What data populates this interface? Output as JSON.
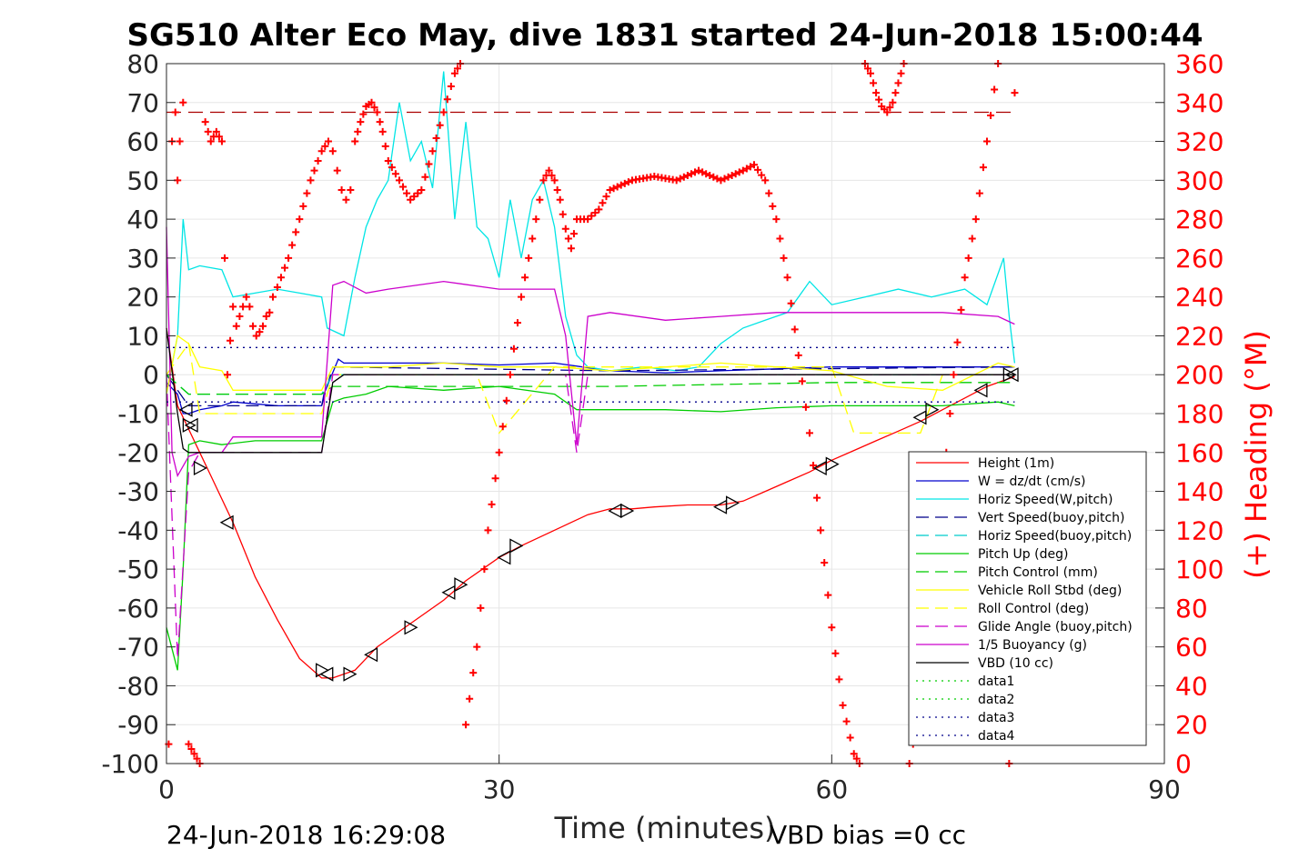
{
  "chart_data": {
    "type": "line",
    "title": "SG510 Alter Eco May, dive 1831 started 24-Jun-2018 15:00:44",
    "xlabel": "Time (minutes)",
    "ylabel_right": "(+) Heading (°M)",
    "xlim": [
      0,
      90
    ],
    "ylim_left": [
      -100,
      80
    ],
    "ylim_right": [
      0,
      360
    ],
    "x_ticks": [
      "0",
      "30",
      "60",
      "90"
    ],
    "y_ticks_left": [
      "80",
      "70",
      "60",
      "50",
      "40",
      "30",
      "20",
      "10",
      "0",
      "-10",
      "-20",
      "-30",
      "-40",
      "-50",
      "-60",
      "-70",
      "-80",
      "-90",
      "-100"
    ],
    "y_ticks_right": [
      "360",
      "340",
      "320",
      "300",
      "280",
      "260",
      "240",
      "220",
      "200",
      "180",
      "160",
      "140",
      "120",
      "100",
      "80",
      "60",
      "40",
      "20",
      "0"
    ],
    "grid": true,
    "legend_position": "lower-right",
    "footer_left": "24-Jun-2018 16:29:08",
    "footer_right": "VBD bias =0 cc",
    "reference_line_y": 67.5,
    "series": [
      {
        "name": "Height (1m)",
        "color": "#ff0000",
        "style": "solid",
        "x": [
          0,
          1,
          2,
          3,
          4,
          6,
          8,
          10,
          12,
          14,
          15,
          17,
          19,
          22,
          25,
          27,
          30,
          32,
          35,
          38,
          40,
          42,
          44,
          47,
          50,
          52,
          54,
          56,
          58,
          60,
          62,
          64,
          66,
          68,
          70,
          72,
          74,
          76.5
        ],
        "y": [
          12,
          -8,
          -14,
          -20,
          -26,
          -38,
          -52,
          -63,
          -73,
          -78,
          -78,
          -76,
          -70,
          -64,
          -58,
          -53,
          -47,
          -44,
          -40,
          -36,
          -34.5,
          -34.5,
          -34,
          -33.5,
          -33.5,
          -32.5,
          -30,
          -27.5,
          -25,
          -22,
          -19.5,
          -17,
          -14.5,
          -12,
          -9,
          -6,
          -3,
          -0.5
        ]
      },
      {
        "name": "W = dz/dt (cm/s)",
        "color": "#0000cd",
        "style": "solid",
        "x": [
          0,
          1,
          1.5,
          2,
          3,
          5,
          6,
          8,
          10,
          12,
          14,
          14.2,
          15.5,
          16,
          20,
          25,
          30,
          35,
          40,
          45,
          50,
          55,
          60,
          65,
          70,
          75,
          76.5
        ],
        "y": [
          -2,
          -5,
          -10,
          -10,
          -9,
          -8,
          -7,
          -7.5,
          -8,
          -8,
          -8,
          -5,
          4,
          3,
          3,
          3,
          2.5,
          3,
          1,
          0.5,
          1,
          1.5,
          2,
          2,
          2,
          2,
          2
        ]
      },
      {
        "name": "Horiz Speed(W,pitch)",
        "color": "#00e5e5",
        "style": "solid",
        "x": [
          0,
          1,
          1.5,
          2,
          3,
          5,
          6,
          8,
          10,
          12,
          14,
          14.5,
          16,
          17,
          18,
          19,
          20,
          21,
          22,
          23,
          24,
          25,
          26,
          27,
          28,
          29,
          30,
          31,
          32,
          33,
          34,
          35,
          36,
          37,
          38,
          40,
          43,
          46,
          48,
          50,
          52,
          54,
          56,
          57,
          58,
          60,
          63,
          66,
          69,
          72,
          74,
          75.5,
          76,
          76.5
        ],
        "y": [
          -5,
          10,
          40,
          27,
          28,
          27,
          20,
          21,
          22,
          21,
          20,
          12,
          10,
          25,
          38,
          45,
          50,
          70,
          55,
          60,
          48,
          78,
          40,
          65,
          38,
          35,
          25,
          45,
          30,
          45,
          50,
          38,
          15,
          5,
          2,
          1,
          2,
          1,
          2,
          8,
          12,
          14,
          16,
          20,
          24,
          18,
          20,
          22,
          20,
          22,
          18,
          30,
          15,
          3
        ]
      },
      {
        "name": "Vert Speed(buoy,pitch)",
        "color": "#00008b",
        "style": "dash",
        "x": [
          0,
          2,
          3,
          14,
          15,
          40,
          76.5
        ],
        "y": [
          0,
          -8,
          -8,
          -8,
          2,
          1,
          2
        ]
      },
      {
        "name": "Horiz Speed(buoy,pitch)",
        "color": "#00cccc",
        "style": "dash",
        "x": [
          0,
          2,
          3,
          14,
          15,
          40,
          76.5
        ],
        "y": [
          0,
          -5,
          -5,
          -5,
          0,
          0,
          0
        ]
      },
      {
        "name": "Pitch Up (deg)",
        "color": "#00cc00",
        "style": "solid",
        "x": [
          0,
          1,
          1.5,
          2,
          3,
          5,
          8,
          10,
          12,
          14,
          15,
          16,
          18,
          20,
          25,
          30,
          35,
          37,
          40,
          45,
          50,
          55,
          60,
          65,
          70,
          75,
          76.5
        ],
        "y": [
          -65,
          -76,
          -50,
          -18,
          -17,
          -18,
          -17,
          -17,
          -17,
          -17,
          -7,
          -6,
          -5,
          -3,
          -4,
          -3,
          -5,
          -9,
          -9,
          -9,
          -9.5,
          -8.5,
          -8,
          -8,
          -8,
          -7,
          -8
        ]
      },
      {
        "name": "Pitch Control (mm)",
        "color": "#00cc00",
        "style": "dash",
        "x": [
          0,
          2,
          3,
          14,
          15,
          40,
          60,
          76.5
        ],
        "y": [
          0,
          -5,
          -5,
          -5,
          -3,
          -3,
          -2,
          -2
        ]
      },
      {
        "name": "Vehicle Roll Stbd (deg)",
        "color": "#ffff00",
        "style": "solid",
        "x": [
          0,
          1,
          2,
          3,
          5,
          6,
          10,
          14,
          15,
          20,
          25,
          30,
          35,
          40,
          45,
          50,
          55,
          60,
          65,
          70,
          75,
          76.5
        ],
        "y": [
          -5,
          10,
          8,
          2,
          1,
          -4,
          -4,
          -4,
          2,
          2,
          3,
          2,
          2,
          1,
          2,
          3,
          2,
          1,
          -3,
          -4,
          3,
          2
        ]
      },
      {
        "name": "Roll Control (deg)",
        "color": "#ffff00",
        "style": "dash",
        "x": [
          0,
          2,
          3,
          6,
          14,
          15,
          28,
          30,
          35,
          40,
          60,
          62,
          68,
          70,
          76.5
        ],
        "y": [
          0,
          8,
          -10,
          -10,
          -10,
          0,
          0,
          -15,
          2,
          2,
          2,
          -15,
          -15,
          0,
          0
        ]
      },
      {
        "name": "Glide Angle (buoy,pitch)",
        "color": "#cc00cc",
        "style": "dash",
        "x": [
          0,
          1,
          2,
          3,
          14,
          15,
          36,
          37,
          38,
          40,
          76.5
        ],
        "y": [
          0,
          -73,
          -25,
          -20,
          -20,
          0,
          0,
          -20,
          0,
          0,
          0
        ]
      },
      {
        "name": "1/5 Buoyancy (g)",
        "color": "#cc00cc",
        "style": "solid",
        "x": [
          0,
          0.5,
          1,
          2,
          3,
          5,
          6,
          8,
          10,
          14,
          15,
          16,
          18,
          20,
          25,
          30,
          35,
          36,
          37,
          38,
          40,
          45,
          50,
          55,
          60,
          65,
          70,
          75,
          76.5
        ],
        "y": [
          38,
          -20,
          -26,
          -21,
          -20,
          -20,
          -16,
          -16,
          -16,
          -16,
          23,
          24,
          21,
          22,
          24,
          22,
          22,
          10,
          -18,
          15,
          16,
          14,
          15,
          16,
          16,
          16,
          16,
          15,
          13
        ]
      },
      {
        "name": "VBD (10 cc)",
        "color": "#000000",
        "style": "solid",
        "x": [
          0,
          1,
          1.5,
          2,
          14,
          15,
          16,
          76.5
        ],
        "y": [
          12,
          -10,
          -19,
          -20,
          -20,
          -2,
          0,
          0
        ]
      },
      {
        "name": "data1",
        "color": "#00cc00",
        "style": "dot",
        "x": [],
        "y": []
      },
      {
        "name": "data2",
        "color": "#00cc00",
        "style": "dot",
        "x": [],
        "y": []
      },
      {
        "name": "data3",
        "color": "#00008b",
        "style": "dot",
        "x": [
          0,
          76.5
        ],
        "y": [
          7,
          7
        ]
      },
      {
        "name": "data4",
        "color": "#00008b",
        "style": "dot",
        "x": [
          0,
          76.5
        ],
        "y": [
          -7,
          -7
        ]
      }
    ],
    "heading": {
      "name": "(+) Heading (°M)",
      "color": "#ff0000",
      "axis": "right",
      "x": [
        0.2,
        0.5,
        0.8,
        1.0,
        1.2,
        1.5,
        2.0,
        2.5,
        3.0,
        3.5,
        4.0,
        4.5,
        5.0,
        5.5,
        6.0,
        6.3,
        6.6,
        6.9,
        7.2,
        7.5,
        7.8,
        8.1,
        8.4,
        8.7,
        9.0,
        9.3,
        9.6,
        10,
        11,
        12,
        13,
        14,
        14.6,
        15.0,
        15.4,
        15.8,
        16.2,
        16.6,
        17,
        17.5,
        18,
        18.5,
        19,
        19.5,
        20,
        21,
        22,
        23,
        24,
        25,
        26,
        26.5,
        27,
        28,
        29,
        30,
        31,
        32,
        33,
        34,
        34.5,
        35,
        35.5,
        36,
        36.5,
        37,
        38,
        39,
        40,
        42,
        44,
        46,
        48,
        50,
        52,
        53,
        54,
        55,
        56,
        57,
        58,
        59,
        60,
        61,
        62,
        62.5,
        63,
        63.5,
        64,
        64.5,
        65,
        65.5,
        66,
        66.5,
        67,
        68,
        69,
        70,
        71,
        72,
        73,
        74,
        75,
        76,
        76.5
      ],
      "y": [
        10,
        320,
        335,
        300,
        320,
        340,
        10,
        5,
        0,
        330,
        320,
        325,
        320,
        200,
        235,
        225,
        230,
        235,
        240,
        235,
        225,
        220,
        222,
        225,
        230,
        232,
        240,
        245,
        260,
        280,
        300,
        315,
        320,
        315,
        305,
        295,
        290,
        295,
        320,
        330,
        338,
        340,
        335,
        325,
        310,
        300,
        290,
        295,
        315,
        335,
        355,
        360,
        20,
        60,
        120,
        160,
        200,
        240,
        270,
        300,
        305,
        300,
        290,
        275,
        265,
        280,
        280,
        285,
        295,
        300,
        302,
        300,
        305,
        300,
        305,
        308,
        300,
        280,
        250,
        210,
        170,
        120,
        70,
        30,
        5,
        0,
        360,
        355,
        345,
        338,
        335,
        340,
        350,
        360,
        0,
        30,
        80,
        140,
        200,
        250,
        280,
        320,
        360,
        0,
        345
      ]
    },
    "markers_left": {
      "name": "turn markers",
      "x": [
        1.8,
        2.0,
        2.3,
        3.0,
        5.5,
        14.0,
        14.5,
        16.5,
        18.5,
        22.0,
        25.5,
        26.5,
        30.5,
        31.5,
        40.5,
        41.5,
        50.0,
        51.0,
        59.0,
        60.0,
        68.0,
        69.0,
        73.5,
        76.0,
        76.3
      ],
      "y": [
        -9,
        -13,
        -13,
        -24,
        -38,
        -76,
        -77,
        -77,
        -72,
        -65,
        -56,
        -54,
        -47,
        -44,
        -35,
        -35,
        -34,
        -33,
        -24,
        -23,
        -11,
        -9,
        -4,
        0,
        0
      ]
    }
  }
}
